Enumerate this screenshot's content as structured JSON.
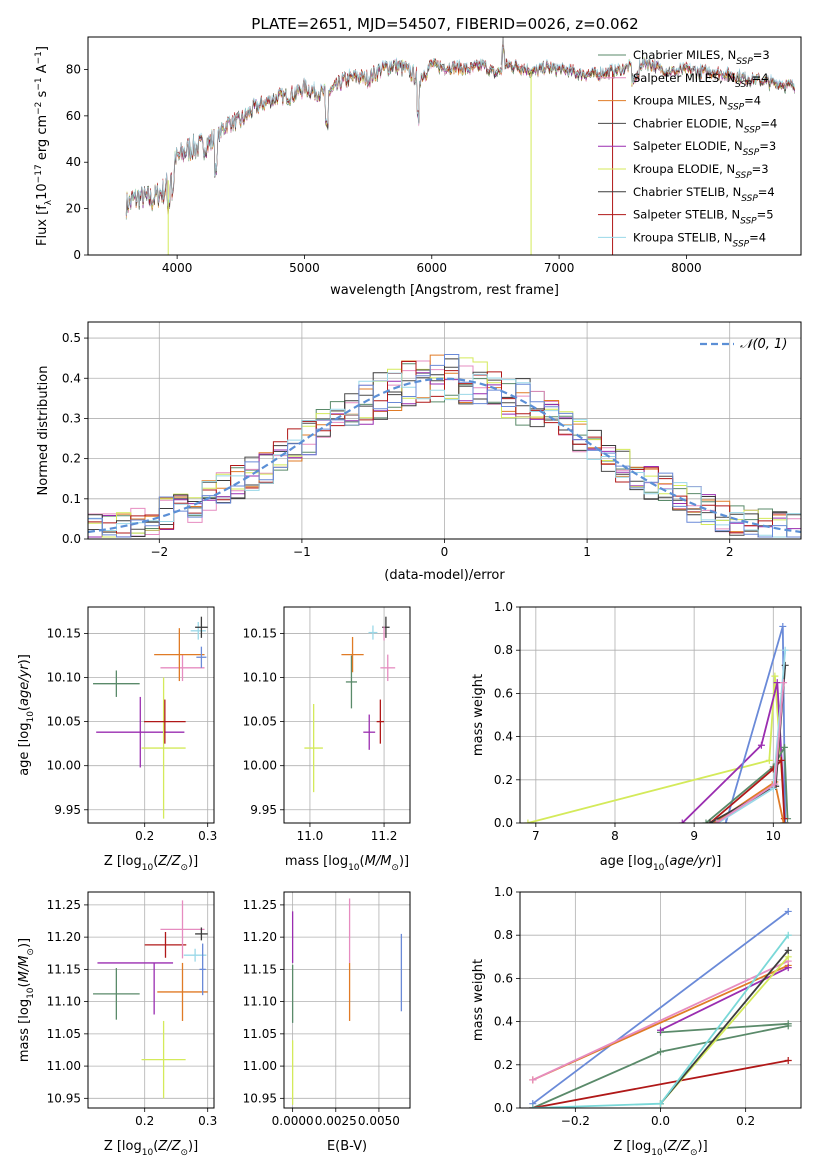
{
  "figure": {
    "title": "PLATE=2651, MJD=54507, FIBERID=0026, z=0.062"
  },
  "series_colors": {
    "Chabrier MILES": "#5a8a6a",
    "Salpeter MILES": "#e68cc0",
    "Kroupa MILES": "#e07b26",
    "Chabrier ELODIE": "#4a4a4a",
    "Salpeter ELODIE": "#9a2db0",
    "Kroupa ELODIE": "#d4ea5a",
    "Chabrier STELIB": "#3c3c3c",
    "Salpeter STELIB": "#b01818",
    "Kroupa STELIB": "#9ad8e8",
    "extra_blue": "#6a8ad8",
    "extra_cyan": "#7ad8d8"
  },
  "chart_data": [
    {
      "id": "spectrum",
      "type": "line",
      "xlabel": "wavelength [Angstrom, rest frame]",
      "ylabel": "Flux [f",
      "xlim": [
        3300,
        8900
      ],
      "ylim": [
        0,
        94
      ],
      "xticks": [
        4000,
        5000,
        6000,
        7000,
        8000
      ],
      "yticks": [
        0,
        20,
        40,
        60,
        80
      ],
      "legend_position": "upper-right",
      "legend": [
        {
          "name": "Chabrier MILES, N",
          "sub": "SSP",
          "suffix": "=3"
        },
        {
          "name": "Salpeter MILES, N",
          "sub": "SSP",
          "suffix": "=4"
        },
        {
          "name": "Kroupa MILES, N",
          "sub": "SSP",
          "suffix": "=4"
        },
        {
          "name": "Chabrier ELODIE, N",
          "sub": "SSP",
          "suffix": "=4"
        },
        {
          "name": "Salpeter ELODIE, N",
          "sub": "SSP",
          "suffix": "=3"
        },
        {
          "name": "Kroupa ELODIE, N",
          "sub": "SSP",
          "suffix": "=3"
        },
        {
          "name": "Chabrier STELIB, N",
          "sub": "SSP",
          "suffix": "=4"
        },
        {
          "name": "Salpeter STELIB, N",
          "sub": "SSP",
          "suffix": "=5"
        },
        {
          "name": "Kroupa STELIB, N",
          "sub": "SSP",
          "suffix": "=4"
        }
      ],
      "envelope": {
        "x": [
          3600,
          3700,
          3800,
          3900,
          4000,
          4100,
          4200,
          4300,
          4400,
          4500,
          4600,
          4700,
          4800,
          4900,
          5000,
          5100,
          5200,
          5300,
          5400,
          5500,
          5600,
          5700,
          5800,
          5900,
          6000,
          6100,
          6200,
          6300,
          6400,
          6500,
          6600,
          6700,
          6800,
          6900,
          7000,
          7100,
          7200,
          7300,
          7400,
          7500,
          7600,
          7700,
          7800,
          7900,
          8000,
          8100,
          8200,
          8300,
          8400,
          8500,
          8600,
          8700,
          8800
        ],
        "y": [
          22,
          25,
          24,
          28,
          42,
          46,
          47,
          50,
          57,
          58,
          63,
          66,
          68,
          69,
          72,
          70,
          70,
          75,
          77,
          76,
          80,
          82,
          80,
          76,
          82,
          81,
          81,
          80,
          82,
          78,
          82,
          81,
          79,
          81,
          80,
          79,
          78,
          78,
          79,
          80,
          82,
          83,
          80,
          79,
          80,
          79,
          79,
          78,
          77,
          76,
          75,
          74,
          73
        ]
      },
      "dips": [
        {
          "x": 3930,
          "series": "Kroupa ELODIE"
        },
        {
          "x": 6780,
          "series": "Kroupa ELODIE"
        },
        {
          "x": 7420,
          "series": "Salpeter STELIB"
        }
      ],
      "spike": {
        "x": 6560,
        "y": 95
      }
    },
    {
      "id": "residual-histogram",
      "type": "histogram",
      "xlabel": "(data-model)/error",
      "ylabel": "Normed distribution",
      "xlim": [
        -2.5,
        2.5
      ],
      "ylim": [
        0,
        0.54
      ],
      "xticks": [
        -2,
        -1,
        0,
        1,
        2
      ],
      "yticks": [
        0.0,
        0.1,
        0.2,
        0.3,
        0.4,
        0.5
      ],
      "legend_position": "upper-right",
      "legend": [
        {
          "name": "𝒩(0, 1)",
          "style": "dashed",
          "color": "#5b8fd6"
        }
      ],
      "bin_width": 0.1
    },
    {
      "id": "age-vs-metallicity",
      "type": "errorbar",
      "xlabel": "Z [log",
      "ylabel": "age  [log",
      "xlim": [
        0.11,
        0.31
      ],
      "ylim": [
        9.935,
        10.18
      ],
      "xticks": [
        0.2,
        0.3
      ],
      "yticks": [
        9.95,
        10.0,
        10.05,
        10.1,
        10.15
      ],
      "points": [
        {
          "series": "Chabrier MILES",
          "x": 0.155,
          "y": 10.093,
          "xerr": 0.037,
          "yerr": 0.015
        },
        {
          "series": "Salpeter ELODIE",
          "x": 0.193,
          "y": 10.038,
          "xerr": 0.07,
          "yerr": 0.04
        },
        {
          "series": "Kroupa ELODIE",
          "x": 0.23,
          "y": 10.02,
          "xerr": 0.035,
          "yerr": 0.08
        },
        {
          "series": "Salpeter STELIB",
          "x": 0.232,
          "y": 10.05,
          "xerr": 0.033,
          "yerr": 0.025
        },
        {
          "series": "Salpeter MILES",
          "x": 0.26,
          "y": 10.111,
          "xerr": 0.035,
          "yerr": 0.015
        },
        {
          "series": "Kroupa MILES",
          "x": 0.255,
          "y": 10.126,
          "xerr": 0.04,
          "yerr": 0.03
        },
        {
          "series": "extra_blue",
          "x": 0.29,
          "y": 10.123,
          "xerr": 0.008,
          "yerr": 0.012
        },
        {
          "series": "Kroupa STELIB",
          "x": 0.285,
          "y": 10.153,
          "xerr": 0.012,
          "yerr": 0.01
        },
        {
          "series": "Chabrier STELIB",
          "x": 0.29,
          "y": 10.157,
          "xerr": 0.01,
          "yerr": 0.012
        }
      ]
    },
    {
      "id": "age-vs-mass",
      "type": "errorbar",
      "xlabel": "mass [log",
      "ylabel": "",
      "xlim": [
        10.93,
        11.27
      ],
      "ylim": [
        9.935,
        10.18
      ],
      "xticks": [
        11.0,
        11.2
      ],
      "yticks": [
        9.95,
        10.0,
        10.05,
        10.1,
        10.15
      ],
      "points": [
        {
          "series": "Kroupa ELODIE",
          "x": 11.01,
          "y": 10.02,
          "xerr": 0.025,
          "yerr": 0.05
        },
        {
          "series": "Chabrier MILES",
          "x": 11.112,
          "y": 10.095,
          "xerr": 0.015,
          "yerr": 0.03
        },
        {
          "series": "Salpeter ELODIE",
          "x": 11.16,
          "y": 10.038,
          "xerr": 0.016,
          "yerr": 0.02
        },
        {
          "series": "Salpeter STELIB",
          "x": 11.19,
          "y": 10.05,
          "xerr": 0.01,
          "yerr": 0.025
        },
        {
          "series": "Kroupa MILES",
          "x": 11.115,
          "y": 10.126,
          "xerr": 0.03,
          "yerr": 0.02
        },
        {
          "series": "Salpeter MILES",
          "x": 11.21,
          "y": 10.111,
          "xerr": 0.02,
          "yerr": 0.015
        },
        {
          "series": "Kroupa STELIB",
          "x": 11.17,
          "y": 10.151,
          "xerr": 0.012,
          "yerr": 0.008
        },
        {
          "series": "Chabrier STELIB",
          "x": 11.205,
          "y": 10.157,
          "xerr": 0.01,
          "yerr": 0.012
        },
        {
          "series": "Salpeter MILES",
          "x": 11.2,
          "y": 10.15,
          "xerr": 0.0,
          "yerr": 0.008
        }
      ]
    },
    {
      "id": "mass-weight-vs-age",
      "type": "line",
      "xlabel": "age  [log",
      "ylabel": "mass weight",
      "xlim": [
        6.8,
        10.35
      ],
      "ylim": [
        0,
        1.0
      ],
      "xticks": [
        7,
        8,
        9,
        10
      ],
      "yticks": [
        0.0,
        0.2,
        0.4,
        0.6,
        0.8,
        1.0
      ],
      "series": [
        {
          "name": "Kroupa ELODIE",
          "x": [
            6.9,
            9.95,
            10.02,
            10.15
          ],
          "y": [
            0.0,
            0.29,
            0.68,
            0.0
          ]
        },
        {
          "name": "Salpeter ELODIE",
          "x": [
            8.85,
            9.85,
            10.05,
            10.15
          ],
          "y": [
            0.0,
            0.36,
            0.65,
            0.0
          ]
        },
        {
          "name": "extra_blue",
          "x": [
            9.4,
            10.12,
            10.15
          ],
          "y": [
            0.0,
            0.91,
            0.0
          ]
        },
        {
          "name": "Chabrier MILES",
          "x": [
            9.15,
            10.0,
            10.14,
            10.18
          ],
          "y": [
            0.0,
            0.26,
            0.35,
            0.02
          ]
        },
        {
          "name": "Salpeter STELIB",
          "x": [
            9.2,
            10.0,
            10.1,
            10.14
          ],
          "y": [
            0.0,
            0.25,
            0.29,
            0.02
          ]
        },
        {
          "name": "Kroupa MILES",
          "x": [
            9.25,
            10.02,
            10.13
          ],
          "y": [
            0.0,
            0.19,
            0.0
          ]
        },
        {
          "name": "Chabrier STELIB",
          "x": [
            9.2,
            10.03,
            10.15
          ],
          "y": [
            0.0,
            0.17,
            0.73
          ]
        },
        {
          "name": "Kroupa STELIB",
          "x": [
            9.3,
            10.0,
            10.15
          ],
          "y": [
            0.0,
            0.16,
            0.8
          ]
        },
        {
          "name": "Salpeter MILES",
          "x": [
            9.28,
            10.02,
            10.13
          ],
          "y": [
            0.0,
            0.18,
            0.65
          ]
        }
      ]
    },
    {
      "id": "mass-vs-metallicity",
      "type": "errorbar",
      "xlabel": "Z [log",
      "ylabel": "mass [log",
      "xlim": [
        0.11,
        0.31
      ],
      "ylim": [
        10.935,
        11.27
      ],
      "xticks": [
        0.2,
        0.3
      ],
      "yticks": [
        10.95,
        11.0,
        11.05,
        11.1,
        11.15,
        11.2,
        11.25
      ],
      "points": [
        {
          "series": "Chabrier MILES",
          "x": 0.155,
          "y": 11.112,
          "xerr": 0.037,
          "yerr": 0.04
        },
        {
          "series": "Salpeter ELODIE",
          "x": 0.185,
          "y": 11.16,
          "xerr": 0.06,
          "yerr": 0.0
        },
        {
          "series": "Salpeter ELODIE",
          "x": 0.215,
          "y": 11.12,
          "xerr": 0.0,
          "yerr": 0.04
        },
        {
          "series": "Kroupa ELODIE",
          "x": 0.23,
          "y": 11.01,
          "xerr": 0.035,
          "yerr": 0.06
        },
        {
          "series": "Salpeter STELIB",
          "x": 0.233,
          "y": 11.188,
          "xerr": 0.033,
          "yerr": 0.02
        },
        {
          "series": "Salpeter MILES",
          "x": 0.26,
          "y": 11.212,
          "xerr": 0.035,
          "yerr": 0.045
        },
        {
          "series": "Kroupa MILES",
          "x": 0.26,
          "y": 11.115,
          "xerr": 0.04,
          "yerr": 0.045
        },
        {
          "series": "Kroupa STELIB",
          "x": 0.28,
          "y": 11.172,
          "xerr": 0.018,
          "yerr": 0.01
        },
        {
          "series": "Chabrier STELIB",
          "x": 0.29,
          "y": 11.205,
          "xerr": 0.01,
          "yerr": 0.01
        },
        {
          "series": "extra_blue",
          "x": 0.292,
          "y": 11.15,
          "xerr": 0.005,
          "yerr": 0.04
        }
      ]
    },
    {
      "id": "mass-vs-extinction",
      "type": "errorbar",
      "xlabel": "E(B-V)",
      "ylabel": "",
      "xlim": [
        -0.0005,
        0.0068
      ],
      "ylim": [
        10.935,
        11.27
      ],
      "xticks": [
        0.0,
        0.0025,
        0.005
      ],
      "xticklabels": [
        "0.0000",
        "0.0025",
        "0.0050"
      ],
      "yticks": [
        10.95,
        11.0,
        11.05,
        11.1,
        11.15,
        11.2,
        11.25
      ],
      "points": [
        {
          "series": "Chabrier MILES",
          "x": 0.0,
          "y": 11.112,
          "xerr": 0.0,
          "yerr": 0.045
        },
        {
          "series": "Salpeter ELODIE",
          "x": 0.0,
          "y": 11.2,
          "xerr": 0.0,
          "yerr": 0.04
        },
        {
          "series": "Kroupa ELODIE",
          "x": 0.0,
          "y": 10.99,
          "xerr": 0.0,
          "yerr": 0.05
        },
        {
          "series": "Kroupa MILES",
          "x": 0.0033,
          "y": 11.115,
          "xerr": 0.0,
          "yerr": 0.045
        },
        {
          "series": "Salpeter MILES",
          "x": 0.0033,
          "y": 11.21,
          "xerr": 0.0,
          "yerr": 0.05
        },
        {
          "series": "extra_blue",
          "x": 0.0063,
          "y": 11.145,
          "xerr": 0.0,
          "yerr": 0.06
        }
      ]
    },
    {
      "id": "mass-weight-vs-metallicity",
      "type": "line",
      "xlabel": "Z [log",
      "ylabel": "mass weight",
      "xlim": [
        -0.33,
        0.33
      ],
      "ylim": [
        0,
        1.0
      ],
      "xticks": [
        -0.2,
        0.0,
        0.2
      ],
      "yticks": [
        0.0,
        0.2,
        0.4,
        0.6,
        0.8,
        1.0
      ],
      "series": [
        {
          "name": "extra_blue",
          "x": [
            -0.3,
            0.3
          ],
          "y": [
            0.02,
            0.91
          ]
        },
        {
          "name": "Kroupa MILES",
          "x": [
            -0.3,
            0.3
          ],
          "y": [
            0.13,
            0.66
          ]
        },
        {
          "name": "Salpeter MILES",
          "x": [
            -0.3,
            0.3
          ],
          "y": [
            0.13,
            0.68
          ]
        },
        {
          "name": "Chabrier MILES",
          "x": [
            -0.3,
            0.0,
            0.3
          ],
          "y": [
            0.0,
            0.26,
            0.38
          ]
        },
        {
          "name": "Chabrier MILES",
          "x": [
            0.0,
            0.3
          ],
          "y": [
            0.35,
            0.39
          ]
        },
        {
          "name": "Salpeter STELIB",
          "x": [
            -0.3,
            0.3
          ],
          "y": [
            0.0,
            0.22
          ]
        },
        {
          "name": "Salpeter ELODIE",
          "x": [
            0.0,
            0.3
          ],
          "y": [
            0.36,
            0.65
          ]
        },
        {
          "name": "Kroupa ELODIE",
          "x": [
            0.0,
            0.3
          ],
          "y": [
            0.02,
            0.7
          ]
        },
        {
          "name": "Chabrier STELIB",
          "x": [
            0.0,
            0.3
          ],
          "y": [
            0.02,
            0.73
          ]
        },
        {
          "name": "extra_cyan",
          "x": [
            -0.3,
            0.0,
            0.3
          ],
          "y": [
            0.0,
            0.02,
            0.8
          ]
        }
      ]
    }
  ]
}
